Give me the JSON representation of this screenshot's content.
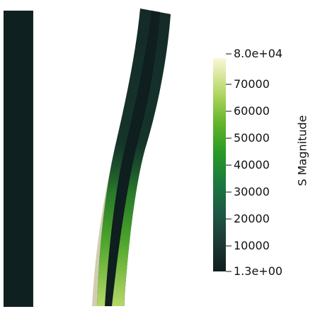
{
  "legend": {
    "title": "S Magnitude",
    "min_label": "1.3e+00",
    "max_label": "8.0e+04",
    "ticks": [
      "10000",
      "20000",
      "30000",
      "40000",
      "50000",
      "60000",
      "70000"
    ],
    "colormap": [
      "#0f1e1e",
      "#1c3a36",
      "#1d5a45",
      "#1c7a3e",
      "#2a9b26",
      "#66b52c",
      "#b5d867",
      "#fbf7d7"
    ]
  },
  "colors": {
    "undeformed_beam": "#0f2020",
    "beam_core": "#0f1e1e",
    "beam_shell": "#d2cdb2"
  }
}
